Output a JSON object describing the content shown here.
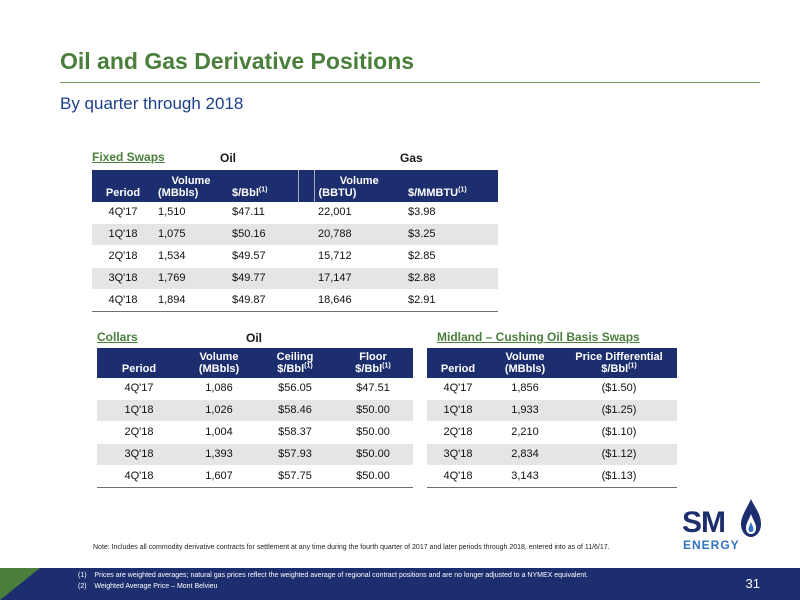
{
  "title": "Oil and Gas Derivative Positions",
  "subtitle": "By quarter through 2018",
  "fixed_swaps": {
    "label": "Fixed Swaps",
    "oil_label": "Oil",
    "gas_label": "Gas",
    "headers": {
      "period": "Period",
      "oil_volume_1": "Volume",
      "oil_volume_2": "(MBbls)",
      "oil_price": "$/Bbl",
      "oil_price_sup": "(1)",
      "gas_volume_1": "Volume",
      "gas_volume_2": "(BBTU)",
      "gas_price": "$/MMBTU",
      "gas_price_sup": "(1)"
    },
    "rows": [
      {
        "period": "4Q'17",
        "oil_vol": "1,510",
        "oil_price": "$47.11",
        "gas_vol": "22,001",
        "gas_price": "$3.98"
      },
      {
        "period": "1Q'18",
        "oil_vol": "1,075",
        "oil_price": "$50.16",
        "gas_vol": "20,788",
        "gas_price": "$3.25"
      },
      {
        "period": "2Q'18",
        "oil_vol": "1,534",
        "oil_price": "$49.57",
        "gas_vol": "15,712",
        "gas_price": "$2.85"
      },
      {
        "period": "3Q'18",
        "oil_vol": "1,769",
        "oil_price": "$49.77",
        "gas_vol": "17,147",
        "gas_price": "$2.88"
      },
      {
        "period": "4Q'18",
        "oil_vol": "1,894",
        "oil_price": "$49.87",
        "gas_vol": "18,646",
        "gas_price": "$2.91"
      }
    ]
  },
  "collars": {
    "label": "Collars",
    "oil_label": "Oil",
    "headers": {
      "period": "Period",
      "volume_1": "Volume",
      "volume_2": "(MBbls)",
      "ceiling_1": "Ceiling",
      "ceiling_2": "$/Bbl",
      "ceiling_sup": "(1)",
      "floor_1": "Floor",
      "floor_2": "$/Bbl",
      "floor_sup": "(1)"
    },
    "rows": [
      {
        "period": "4Q'17",
        "vol": "1,086",
        "ceiling": "$56.05",
        "floor": "$47.51"
      },
      {
        "period": "1Q'18",
        "vol": "1,026",
        "ceiling": "$58.46",
        "floor": "$50.00"
      },
      {
        "period": "2Q'18",
        "vol": "1,004",
        "ceiling": "$58.37",
        "floor": "$50.00"
      },
      {
        "period": "3Q'18",
        "vol": "1,393",
        "ceiling": "$57.93",
        "floor": "$50.00"
      },
      {
        "period": "4Q'18",
        "vol": "1,607",
        "ceiling": "$57.75",
        "floor": "$50.00"
      }
    ]
  },
  "basis_swaps": {
    "label": "Midland – Cushing Oil Basis Swaps",
    "headers": {
      "period": "Period",
      "volume_1": "Volume",
      "volume_2": "(MBbls)",
      "diff_1": "Price Differential",
      "diff_2": "$/Bbl",
      "diff_sup": "(1)"
    },
    "rows": [
      {
        "period": "4Q'17",
        "vol": "1,856",
        "diff": "($1.50)"
      },
      {
        "period": "1Q'18",
        "vol": "1,933",
        "diff": "($1.25)"
      },
      {
        "period": "2Q'18",
        "vol": "2,210",
        "diff": "($1.10)"
      },
      {
        "period": "3Q'18",
        "vol": "2,834",
        "diff": "($1.12)"
      },
      {
        "period": "4Q'18",
        "vol": "3,143",
        "diff": "($1.13)"
      }
    ]
  },
  "note": "Note: Includes all commodity derivative contracts for settlement at any time during the fourth quarter of 2017 and later periods through 2018, entered into as of 11/6/17.",
  "footnotes": [
    "(1)    Prices are weighted averages; natural gas prices reflect the weighted average of regional contract positions and are no longer adjusted to a NYMEX equivalent.",
    "(2)    Weighted Average Price – Mont Belvieu"
  ],
  "page_number": "31",
  "logo": {
    "main": "SM",
    "sub": "ENERGY"
  },
  "colors": {
    "accent_green": "#4a7f3b",
    "header_navy": "#1d2e6e",
    "subtitle_blue": "#1c3f8a"
  }
}
